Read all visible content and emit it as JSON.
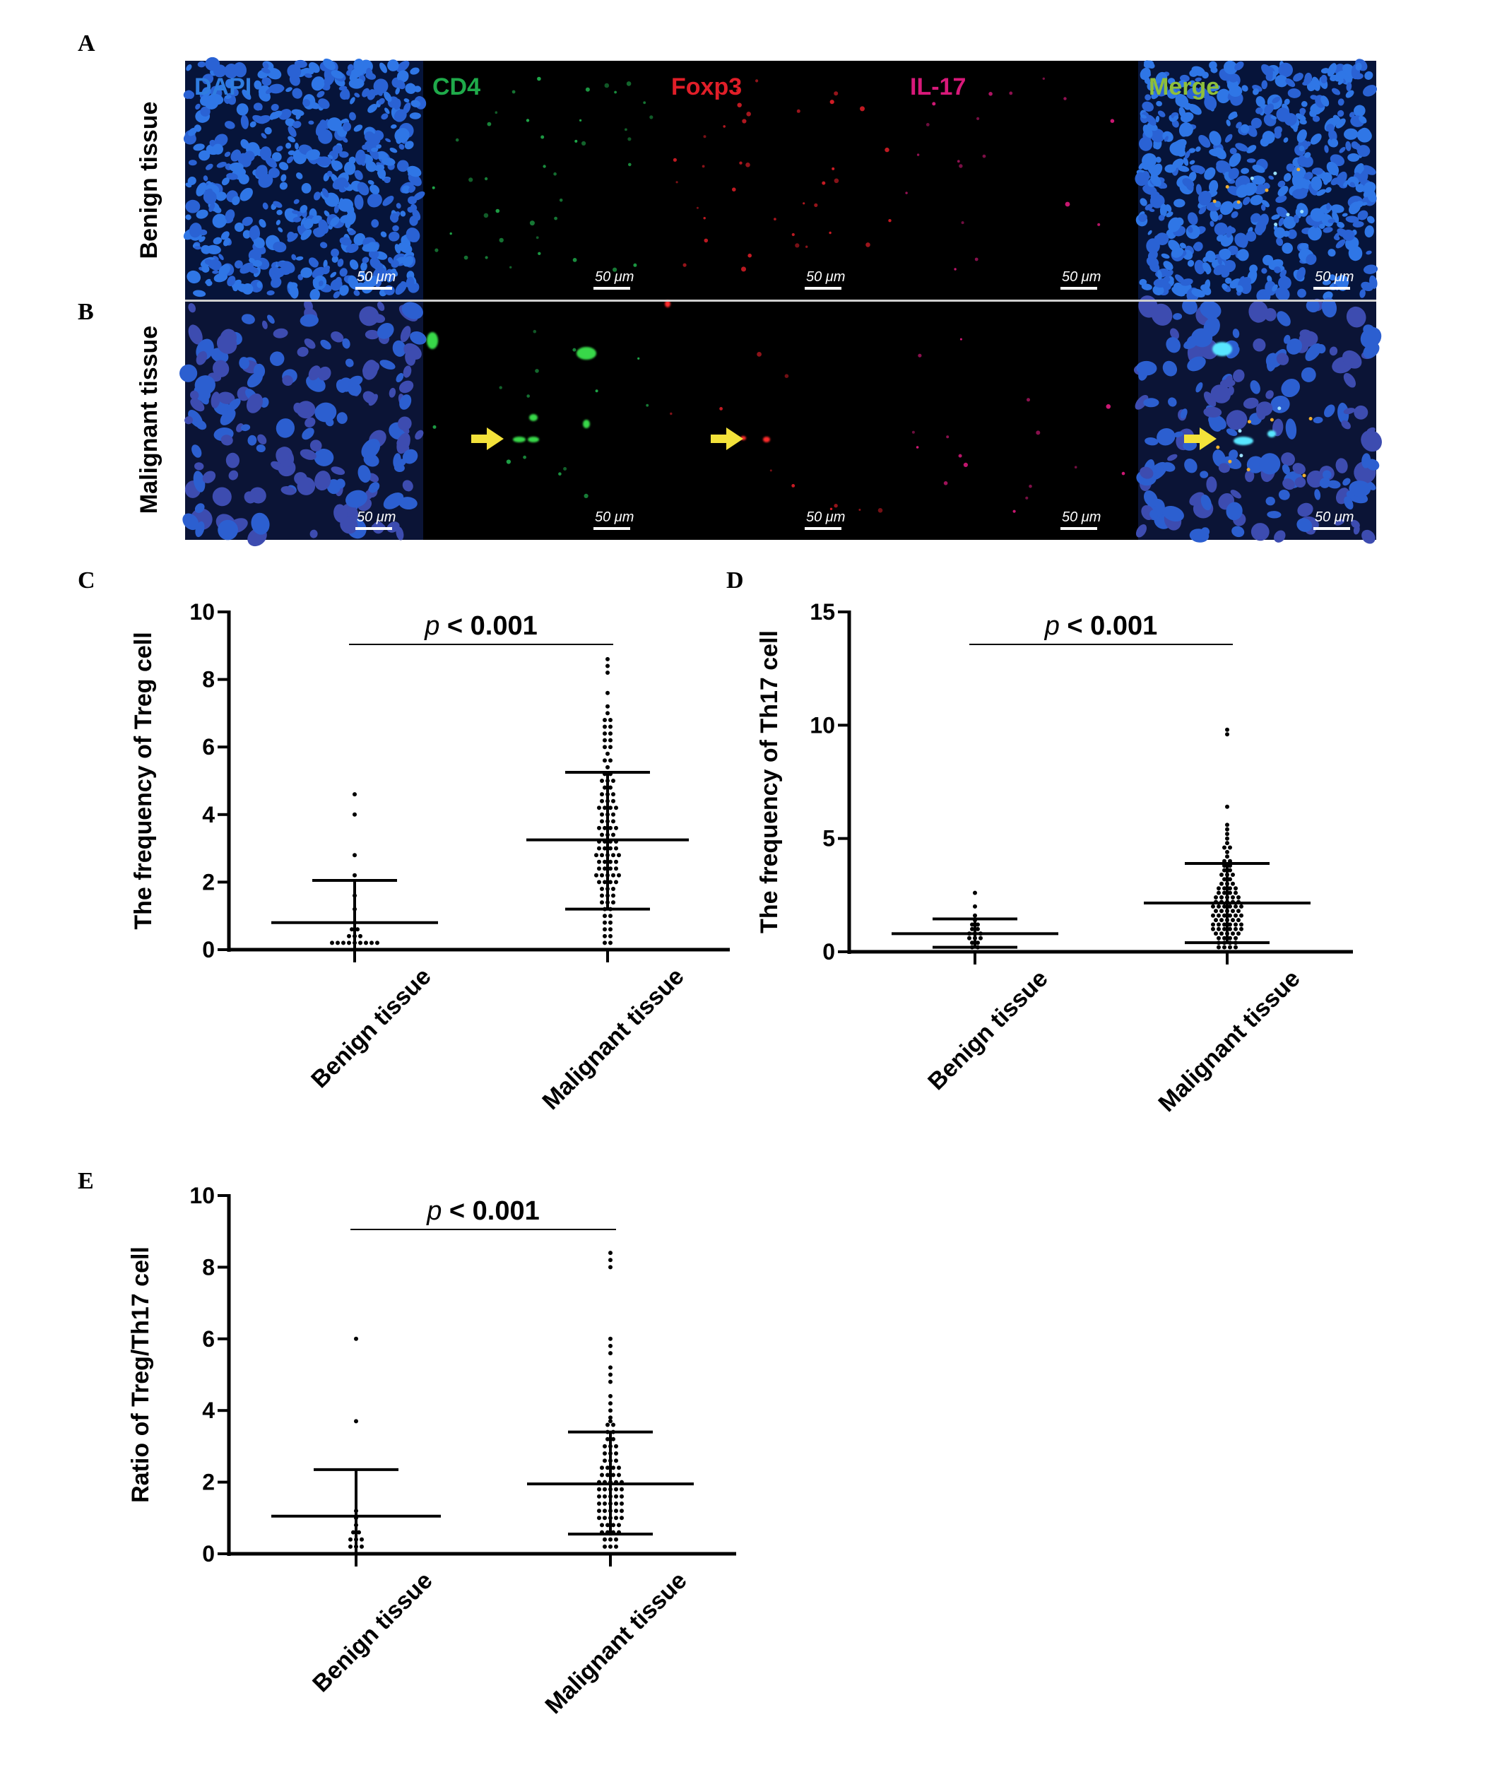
{
  "figure": {
    "panel_letters": [
      "A",
      "B",
      "C",
      "D",
      "E"
    ]
  },
  "microscopy": {
    "channels": [
      {
        "name": "DAPI",
        "color": "#2f7de0"
      },
      {
        "name": "CD4",
        "color": "#1faa4a"
      },
      {
        "name": "Foxp3",
        "color": "#e01e28"
      },
      {
        "name": "IL-17",
        "color": "#d8197a"
      },
      {
        "name": "Merge",
        "color": "#8fbf3a"
      }
    ],
    "rows": [
      "Benign tissue",
      "Malignant tissue"
    ],
    "scale_bar_label": "50 μm",
    "arrow_color": "#f3e23a"
  },
  "chart_data": [
    {
      "type": "scatter",
      "panel": "C",
      "title": "",
      "xlabel": "",
      "ylabel": "The frequency of Treg cell",
      "categories": [
        "Benign tissue",
        "Malignant tissue"
      ],
      "ylim": [
        0,
        10
      ],
      "yticks": [
        0,
        2,
        4,
        6,
        8,
        10
      ],
      "annotation": {
        "p_symbol": "p",
        "text": " < 0.001"
      },
      "groups": [
        {
          "name": "Benign tissue",
          "mean": 0.8,
          "sd_low": 0,
          "sd_high": 2.05,
          "values": [
            4.6,
            4.0,
            2.8,
            2.2,
            1.6,
            1.2,
            0.8,
            0.6,
            0.6,
            0.4,
            0.4,
            0.4,
            0.2,
            0.2,
            0.2,
            0.2,
            0.2,
            0.2,
            0.2,
            0.2,
            0.2
          ]
        },
        {
          "name": "Malignant tissue",
          "mean": 3.25,
          "sd_low": 1.2,
          "sd_high": 5.25,
          "values": [
            8.6,
            8.4,
            8.2,
            7.6,
            7.2,
            7.0,
            6.8,
            6.8,
            6.6,
            6.6,
            6.4,
            6.4,
            6.2,
            6.2,
            6.0,
            6.0,
            5.8,
            5.6,
            5.6,
            5.4,
            5.2,
            5.2,
            5.0,
            5.0,
            5.0,
            4.8,
            4.8,
            4.6,
            4.6,
            4.6,
            4.4,
            4.4,
            4.4,
            4.2,
            4.2,
            4.2,
            4.2,
            4.0,
            4.0,
            4.0,
            3.8,
            3.8,
            3.8,
            3.6,
            3.6,
            3.6,
            3.6,
            3.4,
            3.4,
            3.4,
            3.2,
            3.2,
            3.2,
            3.2,
            3.0,
            3.0,
            3.0,
            3.0,
            2.8,
            2.8,
            2.8,
            2.8,
            2.8,
            2.6,
            2.6,
            2.6,
            2.6,
            2.4,
            2.4,
            2.4,
            2.4,
            2.2,
            2.2,
            2.2,
            2.2,
            2.2,
            2.0,
            2.0,
            2.0,
            2.0,
            1.8,
            1.8,
            1.8,
            1.6,
            1.6,
            1.6,
            1.4,
            1.4,
            1.4,
            1.2,
            1.2,
            1.0,
            1.0,
            0.8,
            0.8,
            0.6,
            0.6,
            0.4,
            0.4,
            0.2,
            0.2
          ]
        }
      ]
    },
    {
      "type": "scatter",
      "panel": "D",
      "title": "",
      "xlabel": "",
      "ylabel": "The frequency of Th17 cell",
      "categories": [
        "Benign tissue",
        "Malignant tissue"
      ],
      "ylim": [
        0,
        15
      ],
      "yticks": [
        0,
        5,
        10,
        15
      ],
      "annotation": {
        "p_symbol": "p",
        "text": " < 0.001"
      },
      "groups": [
        {
          "name": "Benign tissue",
          "mean": 0.8,
          "sd_low": 0.2,
          "sd_high": 1.45,
          "values": [
            2.6,
            2.0,
            1.6,
            1.4,
            1.2,
            1.2,
            1.0,
            1.0,
            0.8,
            0.8,
            0.8,
            0.6,
            0.6,
            0.6,
            0.4,
            0.4,
            0.2,
            0.2
          ]
        },
        {
          "name": "Malignant tissue",
          "mean": 2.15,
          "sd_low": 0.4,
          "sd_high": 3.9,
          "values": [
            9.8,
            9.6,
            6.4,
            5.6,
            5.4,
            5.2,
            5.0,
            4.8,
            4.6,
            4.6,
            4.4,
            4.2,
            4.0,
            4.0,
            3.8,
            3.8,
            3.6,
            3.6,
            3.4,
            3.4,
            3.4,
            3.2,
            3.2,
            3.0,
            3.0,
            3.0,
            2.8,
            2.8,
            2.8,
            2.8,
            2.6,
            2.6,
            2.6,
            2.6,
            2.4,
            2.4,
            2.4,
            2.4,
            2.4,
            2.2,
            2.2,
            2.2,
            2.2,
            2.2,
            2.0,
            2.0,
            2.0,
            2.0,
            2.0,
            2.0,
            1.8,
            1.8,
            1.8,
            1.8,
            1.8,
            1.6,
            1.6,
            1.6,
            1.6,
            1.6,
            1.6,
            1.4,
            1.4,
            1.4,
            1.4,
            1.4,
            1.2,
            1.2,
            1.2,
            1.2,
            1.2,
            1.2,
            1.0,
            1.0,
            1.0,
            1.0,
            1.0,
            1.0,
            0.8,
            0.8,
            0.8,
            0.8,
            0.8,
            0.6,
            0.6,
            0.6,
            0.6,
            0.4,
            0.4,
            0.4,
            0.4,
            0.2,
            0.2,
            0.2,
            0.2
          ]
        }
      ]
    },
    {
      "type": "scatter",
      "panel": "E",
      "title": "",
      "xlabel": "",
      "ylabel": "Ratio of Treg/Th17 cell",
      "categories": [
        "Benign tissue",
        "Malignant tissue"
      ],
      "ylim": [
        0,
        10
      ],
      "yticks": [
        0,
        2,
        4,
        6,
        8,
        10
      ],
      "annotation": {
        "p_symbol": "p",
        "text": " < 0.001"
      },
      "groups": [
        {
          "name": "Benign tissue",
          "mean": 1.05,
          "sd_low": 0,
          "sd_high": 2.35,
          "values": [
            6.0,
            3.7,
            1.2,
            1.0,
            0.8,
            0.6,
            0.6,
            0.4,
            0.4,
            0.4,
            0.2,
            0.2,
            0.2
          ]
        },
        {
          "name": "Malignant tissue",
          "mean": 1.95,
          "sd_low": 0.55,
          "sd_high": 3.4,
          "values": [
            8.4,
            8.2,
            8.0,
            6.0,
            5.8,
            5.6,
            5.2,
            5.0,
            4.8,
            4.4,
            4.2,
            4.0,
            3.8,
            3.7,
            3.6,
            3.6,
            3.4,
            3.4,
            3.2,
            3.2,
            3.0,
            3.0,
            3.0,
            2.8,
            2.8,
            2.8,
            2.6,
            2.6,
            2.6,
            2.4,
            2.4,
            2.4,
            2.4,
            2.2,
            2.2,
            2.2,
            2.2,
            2.0,
            2.0,
            2.0,
            2.0,
            2.0,
            1.8,
            1.8,
            1.8,
            1.8,
            1.8,
            1.6,
            1.6,
            1.6,
            1.6,
            1.6,
            1.4,
            1.4,
            1.4,
            1.4,
            1.4,
            1.2,
            1.2,
            1.2,
            1.2,
            1.2,
            1.0,
            1.0,
            1.0,
            1.0,
            1.0,
            0.8,
            0.8,
            0.8,
            0.8,
            0.6,
            0.6,
            0.6,
            0.6,
            0.4,
            0.4,
            0.4,
            0.2,
            0.2,
            0.2
          ]
        }
      ]
    }
  ]
}
